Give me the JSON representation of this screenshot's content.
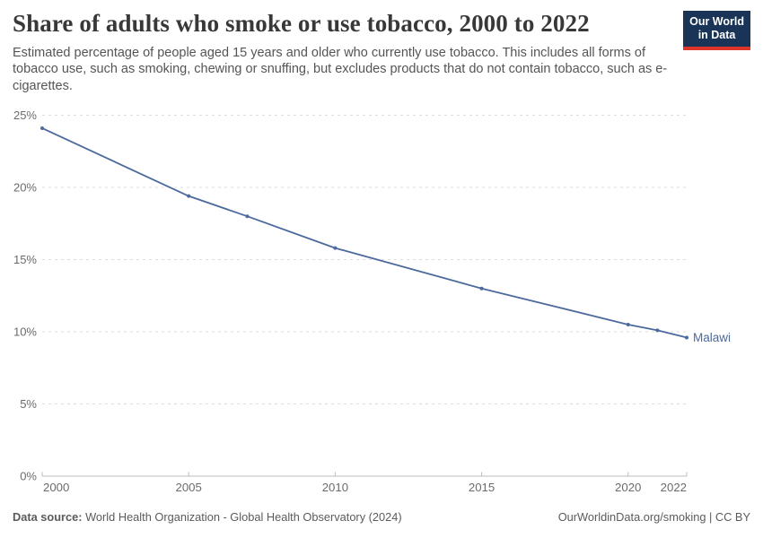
{
  "logo": {
    "line1": "Our World",
    "line2": "in Data"
  },
  "chart_data": {
    "type": "line",
    "title": "Share of adults who smoke or use tobacco, 2000 to 2022",
    "subtitle": "Estimated percentage of people aged 15 years and older who currently use tobacco. This includes all forms of tobacco use, such as smoking, chewing or snuffing, but excludes products that do not contain tobacco, such as e-cigarettes.",
    "series": [
      {
        "name": "Malawi",
        "color": "#4C6A9C",
        "x": [
          2000,
          2005,
          2007,
          2010,
          2015,
          2020,
          2021,
          2022
        ],
        "y": [
          24.1,
          19.4,
          18.0,
          15.8,
          13.0,
          10.5,
          10.1,
          9.6
        ]
      }
    ],
    "xlim": [
      2000,
      2022
    ],
    "ylim": [
      0,
      25
    ],
    "x_ticks": [
      2000,
      2005,
      2010,
      2015,
      2020,
      2022
    ],
    "y_ticks": [
      0,
      5,
      10,
      15,
      20,
      25
    ],
    "y_tick_suffix": "%",
    "grid": "horizontal-dashed",
    "legend": "end-of-line-label"
  },
  "colors": {
    "accent_line": "#4C6A9C",
    "gridline": "#dcdcdc",
    "axis_line": "#bdbdbd",
    "tick_label": "#6b6b6b",
    "logo_bg": "#1a3457",
    "logo_stripe": "#e0352b"
  },
  "footer": {
    "source_label": "Data source:",
    "source_text": " World Health Organization - Global Health Observatory (2024)",
    "attribution": "OurWorldinData.org/smoking | CC BY"
  }
}
